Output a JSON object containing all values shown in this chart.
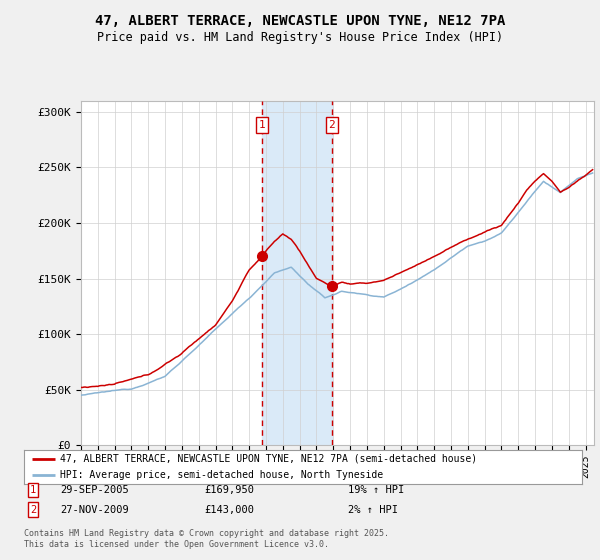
{
  "title_line1": "47, ALBERT TERRACE, NEWCASTLE UPON TYNE, NE12 7PA",
  "title_line2": "Price paid vs. HM Land Registry's House Price Index (HPI)",
  "ylim": [
    0,
    310000
  ],
  "yticks": [
    0,
    50000,
    100000,
    150000,
    200000,
    250000,
    300000
  ],
  "ytick_labels": [
    "£0",
    "£50K",
    "£100K",
    "£150K",
    "£200K",
    "£250K",
    "£300K"
  ],
  "sale1_date": "29-SEP-2005",
  "sale1_price": 169950,
  "sale1_price_str": "£169,950",
  "sale1_hpi_pct": "19% ↑ HPI",
  "sale1_year": 2005.75,
  "sale2_date": "27-NOV-2009",
  "sale2_price": 143000,
  "sale2_price_str": "£143,000",
  "sale2_hpi_pct": "2% ↑ HPI",
  "sale2_year": 2009.917,
  "legend_line1": "47, ALBERT TERRACE, NEWCASTLE UPON TYNE, NE12 7PA (semi-detached house)",
  "legend_line2": "HPI: Average price, semi-detached house, North Tyneside",
  "footer": "Contains HM Land Registry data © Crown copyright and database right 2025.\nThis data is licensed under the Open Government Licence v3.0.",
  "line_color_hpi": "#8ab4d4",
  "line_color_price": "#cc0000",
  "shade_color": "#daeaf8",
  "vline_color": "#cc0000",
  "background_color": "#f0f0f0",
  "plot_bg_color": "#ffffff",
  "xlim_start": 1995.0,
  "xlim_end": 2025.5
}
